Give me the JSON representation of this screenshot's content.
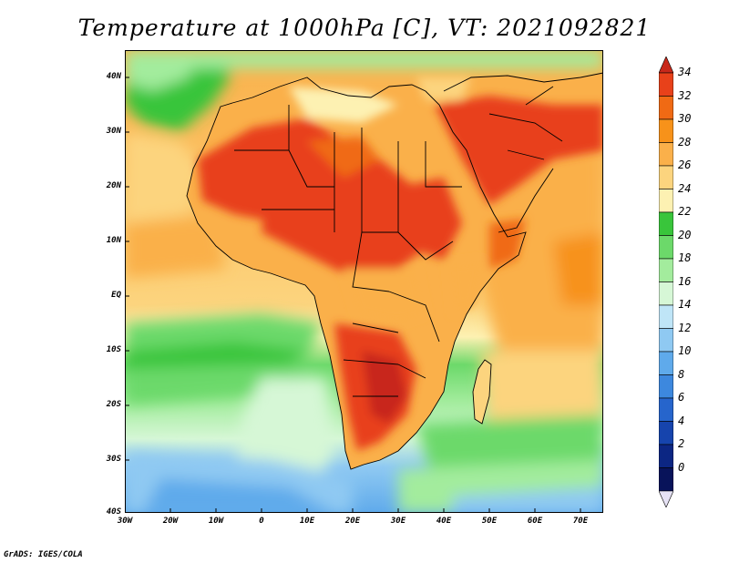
{
  "title": "Temperature at 1000hPa [C], VT: 2021092821",
  "credit": "GrADS: IGES/COLA",
  "map": {
    "lat_labels": [
      "40N",
      "30N",
      "20N",
      "10N",
      "EQ",
      "10S",
      "20S",
      "30S",
      "40S"
    ],
    "lon_labels": [
      "30W",
      "20W",
      "10W",
      "0",
      "10E",
      "20E",
      "30E",
      "40E",
      "50E",
      "60E",
      "70E"
    ]
  },
  "colorbar": {
    "levels": [
      "34",
      "32",
      "30",
      "28",
      "26",
      "24",
      "22",
      "20",
      "18",
      "16",
      "14",
      "12",
      "10",
      "8",
      "6",
      "4",
      "2",
      "0"
    ],
    "colors": [
      "#e8411a",
      "#f06a14",
      "#f7921a",
      "#fab04a",
      "#fcd47e",
      "#fdf1b2",
      "#39c53b",
      "#6cd96a",
      "#a3ec9d",
      "#d6f7d6",
      "#bfe5f7",
      "#8fc9f2",
      "#5faaeb",
      "#3d88de",
      "#2665cc",
      "#1644ad",
      "#0c2683",
      "#08135a"
    ],
    "top_color": "#c8281a",
    "bottom_color": "#e6e2f5"
  }
}
